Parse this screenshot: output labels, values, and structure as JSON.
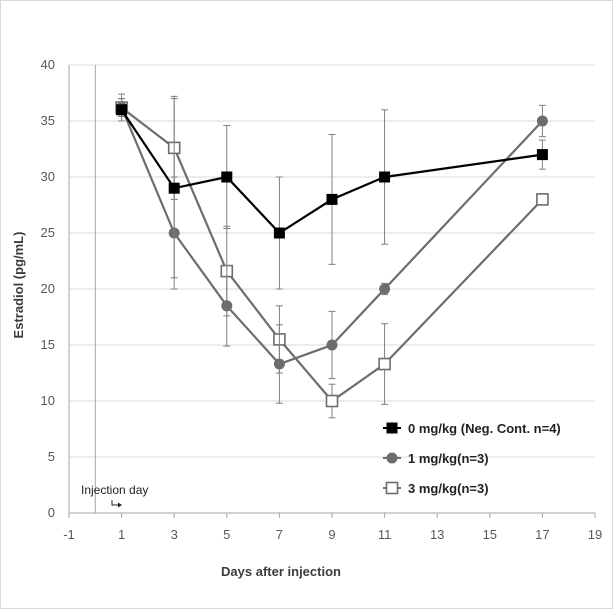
{
  "chart_data": {
    "type": "line",
    "xlabel": "Days after injection",
    "ylabel": "Estradiol (pg/mL)",
    "xlim": [
      -1,
      19
    ],
    "ylim": [
      0,
      40
    ],
    "xticks": [
      -1,
      1,
      3,
      5,
      7,
      9,
      11,
      13,
      15,
      17,
      19
    ],
    "yticks": [
      0,
      5,
      10,
      15,
      20,
      25,
      30,
      35,
      40
    ],
    "grid": "horizontal",
    "legend_position": "bottom-right",
    "annotation": {
      "text": "Injection day",
      "x": 0
    },
    "series": [
      {
        "name": "0 mg/kg (Neg. Cont. n=4)",
        "color": "#000000",
        "marker": "square-filled",
        "x": [
          1,
          3,
          5,
          7,
          9,
          11,
          17
        ],
        "values": [
          36,
          29,
          30,
          25,
          28,
          30,
          32
        ],
        "error": [
          1.0,
          8.0,
          4.6,
          5.0,
          5.8,
          6.0,
          1.3
        ]
      },
      {
        "name": "1 mg/kg(n=3)",
        "color": "#6d6d6d",
        "marker": "circle-filled",
        "x": [
          1,
          3,
          5,
          7,
          9,
          11,
          17
        ],
        "values": [
          36.2,
          25,
          18.5,
          13.3,
          15,
          20,
          35
        ],
        "error": [
          1.2,
          5.0,
          3.6,
          3.5,
          3.0,
          0.5,
          1.4
        ]
      },
      {
        "name": "3 mg/kg(n=3)",
        "color": "#6d6d6d",
        "marker": "square-open",
        "x": [
          1,
          3,
          5,
          7,
          9,
          11,
          17
        ],
        "values": [
          36.2,
          32.6,
          21.6,
          15.5,
          10,
          13.3,
          28
        ],
        "error": [
          0.8,
          4.6,
          4.0,
          3.0,
          1.5,
          3.6,
          0.5
        ]
      }
    ]
  }
}
